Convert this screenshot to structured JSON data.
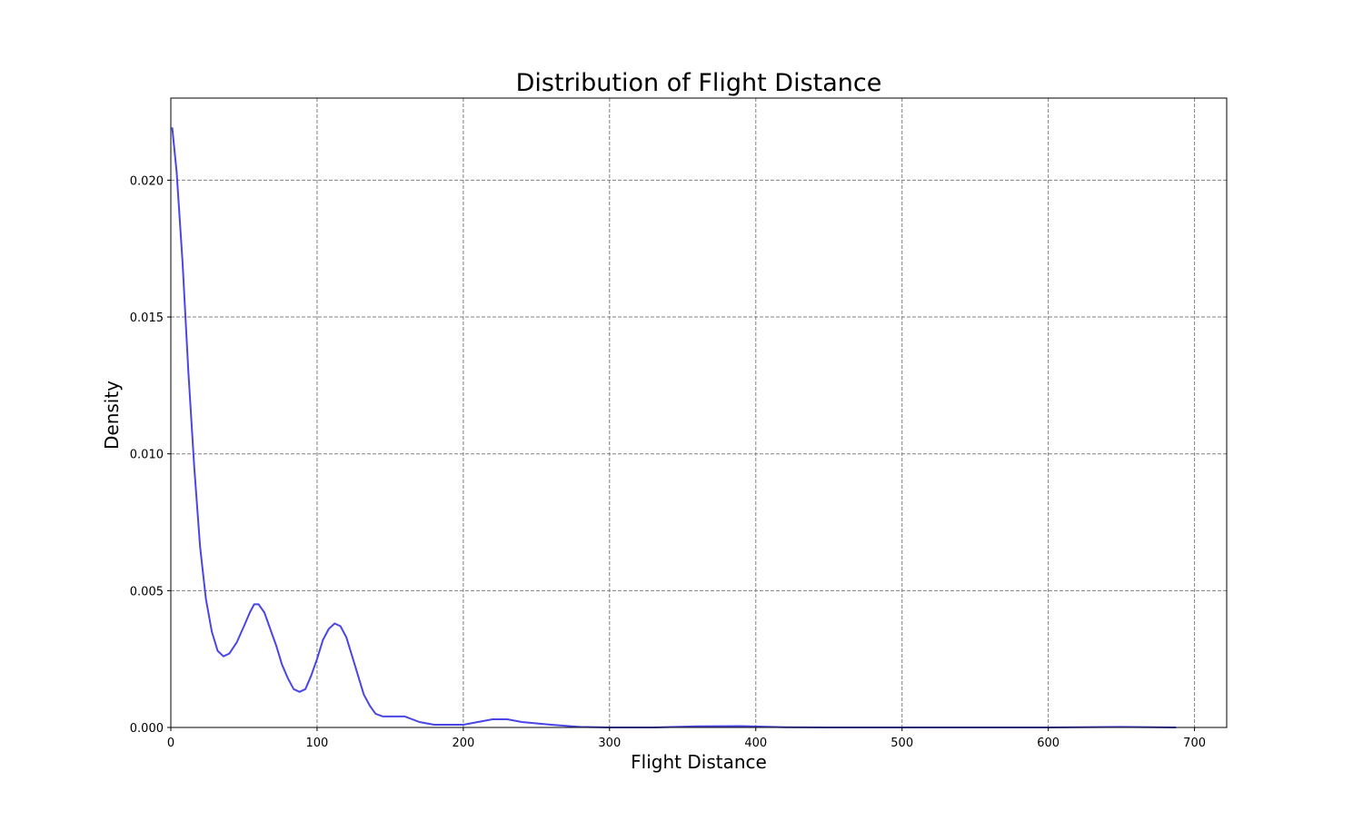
{
  "chart_data": {
    "type": "line",
    "title": "Distribution of Flight Distance",
    "xlabel": "Flight Distance",
    "ylabel": "Density",
    "xlim": [
      0,
      722
    ],
    "ylim": [
      0,
      0.023
    ],
    "xticks": [
      0,
      100,
      200,
      300,
      400,
      500,
      600,
      700
    ],
    "xtick_labels": [
      "0",
      "100",
      "200",
      "300",
      "400",
      "500",
      "600",
      "700"
    ],
    "yticks": [
      0,
      0.005,
      0.01,
      0.015,
      0.02
    ],
    "ytick_labels": [
      "0.000",
      "0.005",
      "0.010",
      "0.015",
      "0.020"
    ],
    "grid": true,
    "legend": false,
    "colors": {
      "line": "#4a46e6",
      "grid": "#808080",
      "axes": "#000000"
    },
    "series": [
      {
        "x": [
          1,
          4,
          8,
          12,
          16,
          20,
          24,
          28,
          32,
          36,
          40,
          45,
          50,
          54,
          57,
          60,
          64,
          68,
          72,
          76,
          80,
          84,
          88,
          92,
          96,
          100,
          104,
          108,
          112,
          116,
          120,
          124,
          128,
          132,
          136,
          140,
          145,
          150,
          160,
          170,
          180,
          190,
          200,
          210,
          220,
          230,
          240,
          260,
          280,
          300,
          330,
          360,
          390,
          420,
          450,
          500,
          550,
          600,
          650,
          687
        ],
        "y": [
          0.0219,
          0.0203,
          0.017,
          0.013,
          0.0095,
          0.0066,
          0.0047,
          0.0035,
          0.0028,
          0.0026,
          0.0027,
          0.0031,
          0.0037,
          0.0042,
          0.0045,
          0.0045,
          0.0042,
          0.0036,
          0.003,
          0.0023,
          0.0018,
          0.0014,
          0.0013,
          0.0014,
          0.0019,
          0.0025,
          0.0032,
          0.0036,
          0.0038,
          0.0037,
          0.0033,
          0.0026,
          0.0019,
          0.0012,
          0.0008,
          0.0005,
          0.0004,
          0.0004,
          0.0004,
          0.0002,
          0.0001,
          0.0001,
          0.0001,
          0.0002,
          0.0003,
          0.0003,
          0.0002,
          0.0001,
          2e-05,
          0.0,
          0.0,
          4e-05,
          5e-05,
          1e-05,
          0.0,
          0.0,
          0.0,
          0.0,
          2e-05,
          0.0
        ]
      }
    ]
  }
}
